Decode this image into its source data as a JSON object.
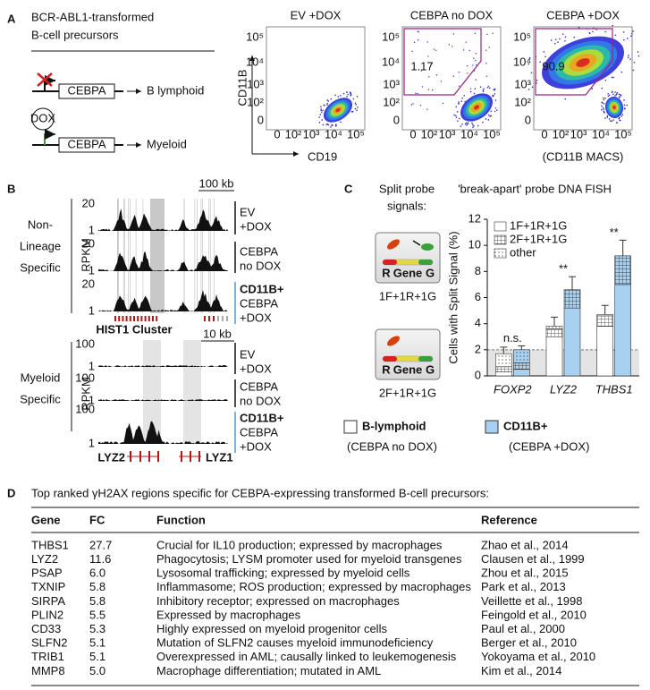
{
  "panel_a": {
    "label": "A",
    "title_lines": [
      "BCR-ABL1-transformed",
      "B-cell precursors"
    ],
    "construct": "CEBPA",
    "outcome_1": "B lymphoid",
    "inducer": "DOX",
    "outcome_2": "Myeloid",
    "plots": [
      {
        "title": "EV +DOX"
      },
      {
        "title": "CEBPA no DOX",
        "gate": 1.17
      },
      {
        "title": "CEBPA +DOX",
        "gate": 90.9
      }
    ],
    "y_axis": "CD11B",
    "x_axis": "CD19",
    "x_note": "(CD11B MACS)",
    "ticks": [
      "0",
      "10²",
      "10³",
      "10⁴",
      "10⁵"
    ]
  },
  "panel_b": {
    "label": "B",
    "group_1": [
      "Non-",
      "Lineage",
      "Specific"
    ],
    "group_2": [
      "Myeloid",
      "Specific"
    ],
    "axis": "RPKM",
    "scale_1": "100 kb",
    "scale_2": "10 kb",
    "tick_1": "20",
    "tick_2": "100",
    "tick_low": "1",
    "conditions": [
      [
        "EV",
        "+DOX"
      ],
      [
        "CEBPA",
        "no DOX"
      ],
      [
        "CD11B+",
        "CEBPA",
        "+DOX"
      ]
    ],
    "cluster": "HIST1 Cluster",
    "genes": [
      "LYZ2",
      "LYZ1"
    ]
  },
  "panel_c": {
    "label": "C",
    "intro": [
      "Split probe",
      "signals:"
    ],
    "title": "'break-apart' probe DNA FISH",
    "probe": [
      "R",
      "Gene",
      "G"
    ],
    "patterns": [
      "1F+1R+1G",
      "2F+1R+1G"
    ]
  },
  "chart_data": {
    "type": "bar",
    "ylabel": "Cells with Split Signal (%)",
    "categories": [
      "FOXP2",
      "LYZ2",
      "THBS1"
    ],
    "ylim": [
      0,
      12
    ],
    "yticks": [
      0,
      2,
      4,
      6,
      8,
      10,
      12
    ],
    "baseline": 2,
    "segments": [
      "1F+1R+1G",
      "2F+1R+1G",
      "other"
    ],
    "groups": [
      {
        "name": "B-lymphoid",
        "note": "(CEBPA no DOX)",
        "color": "#ffffff",
        "stacks": [
          [
            0.3,
            3.0,
            3.8
          ],
          [
            0.4,
            0.6,
            0.8
          ],
          [
            1.0,
            0.2,
            0.1
          ]
        ],
        "errors": [
          0.5,
          0.7,
          0.7
        ]
      },
      {
        "name": "CD11B+",
        "note": "(CEBPA +DOX)",
        "color": "#a8d0f0",
        "stacks": [
          [
            0.5,
            5.2,
            7.0
          ],
          [
            0.5,
            1.4,
            2.2
          ],
          [
            1.0,
            0,
            0
          ]
        ],
        "errors": [
          0.3,
          1.0,
          1.2
        ]
      }
    ],
    "significance": [
      "n.s.",
      "**",
      "**"
    ]
  },
  "panel_d": {
    "label": "D",
    "title": "Top ranked γH2AX regions specific for CEBPA-expressing transformed B-cell precursors:",
    "header": [
      "Gene",
      "FC",
      "Function",
      "Reference"
    ],
    "rows": [
      [
        "THBS1",
        "27.7",
        "Crucial for IL10 production; expressed by macrophages",
        "Zhao et al., 2014"
      ],
      [
        "LYZ2",
        "11.6",
        "Phagocytosis; LYSM promoter used for myeloid transgenes",
        "Clausen et al., 1999"
      ],
      [
        "PSAP",
        "6.0",
        "Lysosomal trafficking; expressed by myeloid cells",
        "Zhou et al., 2015"
      ],
      [
        "TXNIP",
        "5.8",
        "Inflammasome; ROS production; expressed by macrophages",
        "Park et al., 2013"
      ],
      [
        "SIRPA",
        "5.8",
        "Inhibitory receptor; expressed on macrophages",
        "Veillette et al., 1998"
      ],
      [
        "PLIN2",
        "5.5",
        "Expressed by macrophages",
        "Feingold et al., 2010"
      ],
      [
        "CD33",
        "5.3",
        "Highly expressed on myeloid progenitor cells",
        "Paul et al., 2000"
      ],
      [
        "SLFN2",
        "5.1",
        "Mutation of SLFN2 causes myeloid immunodeficiency",
        "Berger et al., 2010"
      ],
      [
        "TRIB1",
        "5.1",
        "Overexpressed in AML; causally linked to leukemogenesis",
        "Yokoyama et al., 2010"
      ],
      [
        "MMP8",
        "5.0",
        "Macrophage differentiation; mutated in AML",
        "Kim et al., 2014"
      ]
    ]
  }
}
